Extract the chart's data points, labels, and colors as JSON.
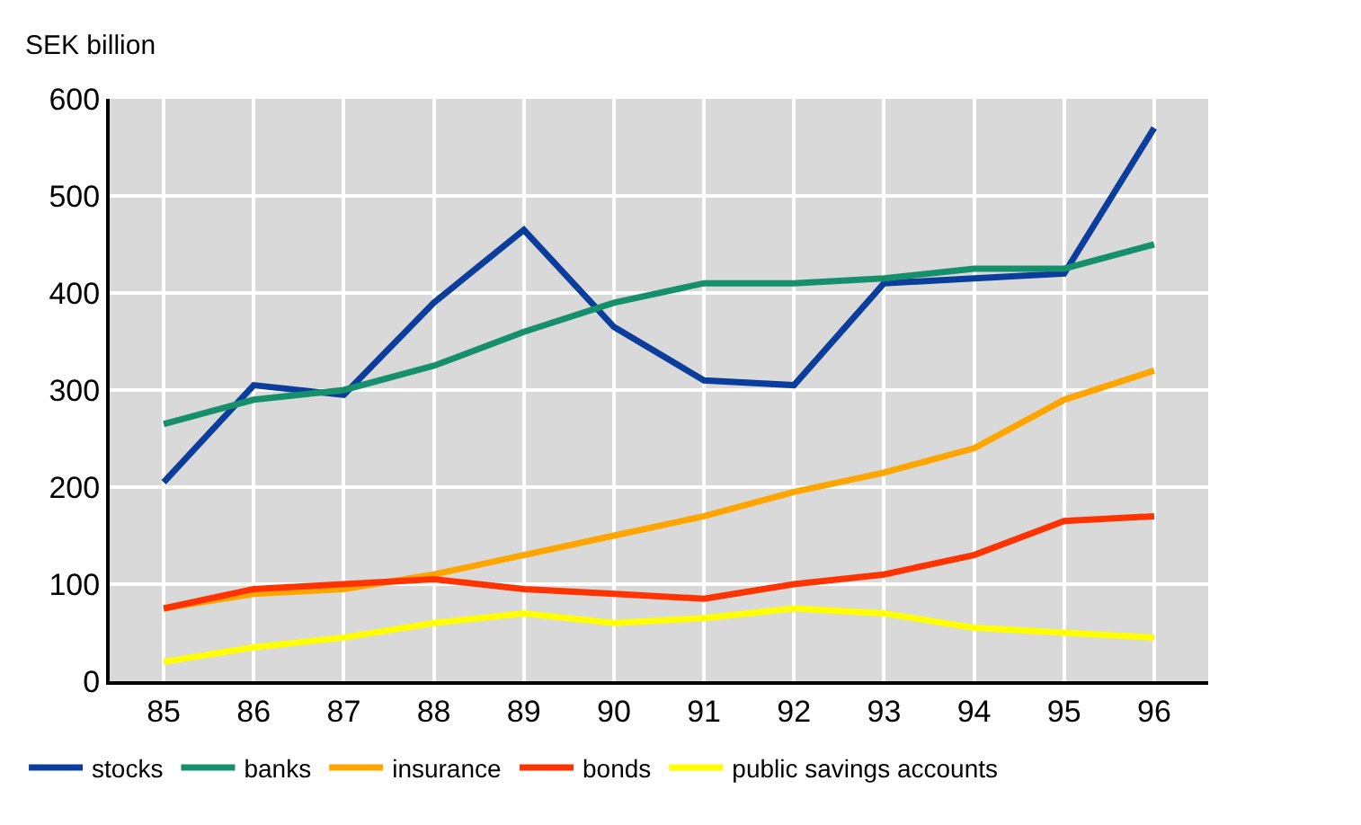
{
  "chart_data": {
    "type": "line",
    "ylabel": "SEK billion",
    "categories": [
      "85",
      "86",
      "87",
      "88",
      "89",
      "90",
      "91",
      "92",
      "93",
      "94",
      "95",
      "96"
    ],
    "series": [
      {
        "name": "stocks",
        "color": "#0b3d9c",
        "values": [
          205,
          305,
          295,
          390,
          465,
          365,
          310,
          305,
          410,
          415,
          420,
          570
        ]
      },
      {
        "name": "banks",
        "color": "#16906a",
        "values": [
          265,
          290,
          300,
          325,
          360,
          390,
          410,
          410,
          415,
          425,
          425,
          450
        ]
      },
      {
        "name": "insurance",
        "color": "#ffa500",
        "values": [
          75,
          90,
          95,
          110,
          130,
          150,
          170,
          195,
          215,
          240,
          290,
          320
        ]
      },
      {
        "name": "bonds",
        "color": "#ff3300",
        "values": [
          75,
          95,
          100,
          105,
          95,
          90,
          85,
          100,
          110,
          130,
          165,
          170
        ]
      },
      {
        "name": "public savings accounts",
        "color": "#ffff00",
        "values": [
          20,
          35,
          45,
          60,
          70,
          60,
          65,
          75,
          70,
          55,
          50,
          45
        ]
      }
    ],
    "ylim": [
      0,
      600
    ],
    "yticks": [
      0,
      100,
      200,
      300,
      400,
      500,
      600
    ],
    "grid": true,
    "legend": "bottom",
    "marker": "none",
    "line_style": "solid"
  }
}
